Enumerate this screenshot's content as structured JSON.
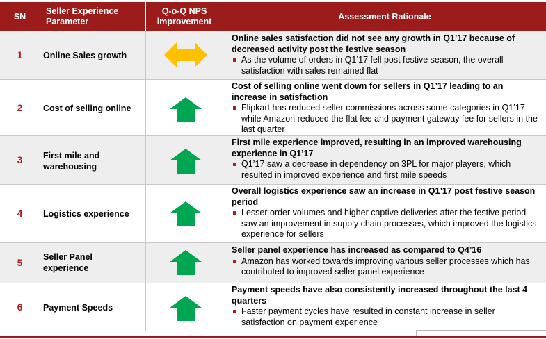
{
  "header": {
    "sn": "SN",
    "parameter": "Seller Experience Parameter",
    "nps": "Q-o-Q NPS improvement",
    "rationale": "Assessment Rationale"
  },
  "colors": {
    "header_bg": "#9c1b1b",
    "row_shade": "#eeeeee",
    "sn_text": "#b01a1a",
    "arrow_up": "#00a651",
    "arrow_neutral": "#ffc000",
    "bullet": "#b01a1a"
  },
  "rows": [
    {
      "sn": "1",
      "parameter": "Online Sales growth",
      "nps_icon": "neutral-double-arrow-icon",
      "rationale_head": "Online sales satisfaction did not see any growth in Q1’17 because of decreased activity post the festive season",
      "rationale_bullet": "As the volume of orders in Q1’17 fell post festive season, the overall satisfaction with sales remained flat"
    },
    {
      "sn": "2",
      "parameter": "Cost of selling online",
      "nps_icon": "up-arrow-icon",
      "rationale_head": "Cost of selling online went down for sellers in Q1’17 leading to an increase in satisfaction",
      "rationale_bullet": "Flipkart has reduced seller commissions across some categories in Q1’17 while Amazon reduced the flat fee and payment gateway fee for sellers in the last quarter"
    },
    {
      "sn": "3",
      "parameter": "First mile and warehousing",
      "nps_icon": "up-arrow-icon",
      "rationale_head": "First mile experience improved, resulting in an improved warehousing experience in Q1’17",
      "rationale_bullet": "Q1’17 saw a decrease in dependency on 3PL for major players, which resulted in improved experience and first mile speeds"
    },
    {
      "sn": "4",
      "parameter": "Logistics experience",
      "nps_icon": "up-arrow-icon",
      "rationale_head": "Overall logistics experience saw an increase in Q1’17 post festive season period",
      "rationale_bullet": "Lesser order volumes and higher captive deliveries after the festive period saw an improvement in supply chain processes, which improved the logistics experience for sellers"
    },
    {
      "sn": "5",
      "parameter": "Seller Panel experience",
      "nps_icon": "up-arrow-icon",
      "rationale_head": "Seller panel experience has increased as compared to Q4’16",
      "rationale_bullet": "Amazon has worked towards improving various seller processes which has contributed to improved seller panel experience"
    },
    {
      "sn": "6",
      "parameter": "Payment Speeds",
      "nps_icon": "up-arrow-icon",
      "rationale_head": "Payment speeds have also consistently increased throughout the last 4 quarters",
      "rationale_bullet": "Faster payment cycles have resulted in constant increase in seller satisfaction on payment experience"
    }
  ]
}
